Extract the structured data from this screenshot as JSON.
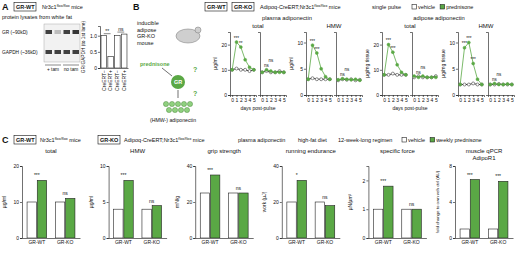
{
  "figure": {
    "panel_labels": [
      "A",
      "B",
      "C"
    ],
    "A": {
      "genotype": "GR-WT",
      "mice": [
        "Nr3c1",
        "flox/flox",
        " mice"
      ],
      "title": "protein lysates from white fat",
      "blot_labels": [
        "GR (~90kD)",
        "GAPDH (~36kD)"
      ],
      "treatments": [
        "+ tam",
        "no tam"
      ]
    },
    "B": {
      "genotypes": [
        "GR-WT",
        "GR-KO"
      ],
      "mice": [
        "Adipoq-CreERT;Nr3c1",
        "flox/flox",
        " mice"
      ],
      "regimen": "single pulse",
      "group_titles": [
        "plasma adiponectin",
        "adipose adiponectin"
      ],
      "diagram": {
        "mouse": [
          "inducible",
          "adipose",
          "GR-KO",
          "mouse"
        ],
        "drug": "prednisone",
        "receptor": "GR",
        "question_marks": [
          "?",
          "?"
        ],
        "product": "(HMW-) adiponectin"
      }
    },
    "C": {
      "genotypes": [
        "GR-WT",
        "GR-KO"
      ],
      "mice": [
        [
          "Nr3c1",
          "flox/flox",
          " mice"
        ],
        [
          "Adipoq-CreERT;Nr3c1",
          "flox/flox",
          " mice"
        ]
      ],
      "regimen": "12-week-long regimen",
      "group_titles": [
        "plasma adiponectin",
        "high-fat diet"
      ]
    }
  },
  "chart_data": [
    {
      "type": "bar",
      "ylabel": "GR/GAPDH (to 1st lane)",
      "categories": [
        "CreERT−",
        "CreERT+",
        "CreERT−",
        "CreERT+"
      ],
      "values": [
        1.0,
        0.35,
        1.0,
        1.05
      ],
      "color": "#ffffff",
      "ylim": [
        0,
        1.3
      ],
      "yticks": [
        0,
        0.5,
        {
          "value": 1,
          "label": "1.0"
        }
      ],
      "sig_labels": [
        "**",
        "ns"
      ]
    },
    {
      "type": "line",
      "title": "total",
      "ylabel": "µg/ml",
      "xlabel": "days post-pulse",
      "x": [
        0,
        1,
        2,
        3,
        4,
        5
      ],
      "xlim": [
        -0.5,
        5.5
      ],
      "xticks": [
        0,
        1,
        2,
        3,
        4,
        5
      ],
      "ylim": [
        0,
        25
      ],
      "yticks": [
        0,
        10,
        20
      ],
      "series": [
        {
          "name": "vehicle",
          "group": "GR-WT",
          "color": "#ffffff",
          "values": [
            10,
            10.5,
            10,
            10,
            9.5,
            10
          ]
        },
        {
          "name": "prednisone",
          "group": "GR-WT",
          "color": "#5aa845",
          "values": [
            10,
            21,
            19,
            14,
            11,
            10
          ],
          "sig_labels": [
            null,
            "***",
            "**",
            null,
            null,
            null
          ]
        },
        {
          "name": "vehicle",
          "group": "GR-KO",
          "color": "#ffffff",
          "values": [
            9,
            9.5,
            9,
            9,
            9.5,
            9
          ]
        },
        {
          "name": "prednisone",
          "group": "GR-KO",
          "color": "#5aa845",
          "values": [
            9,
            10,
            9.5,
            9,
            9,
            9
          ],
          "sig_labels": [
            null,
            "ns",
            "ns",
            null,
            null,
            null
          ]
        }
      ]
    },
    {
      "type": "line",
      "title": "HMW",
      "ylabel": "µg/ml",
      "x": [
        0,
        1,
        2,
        3,
        4,
        5
      ],
      "xlim": [
        -0.5,
        5.5
      ],
      "xticks": [
        0,
        1,
        2,
        3,
        4,
        5
      ],
      "ylim": [
        0,
        12
      ],
      "yticks": [
        0,
        5,
        10
      ],
      "series": [
        {
          "name": "vehicle",
          "group": "GR-WT",
          "color": "#ffffff",
          "values": [
            3,
            3.2,
            3,
            3,
            3,
            3
          ]
        },
        {
          "name": "prednisone",
          "group": "GR-WT",
          "color": "#5aa845",
          "values": [
            3,
            9.5,
            8,
            5,
            3.5,
            3
          ],
          "sig_labels": [
            null,
            "***",
            "***",
            null,
            null,
            null
          ]
        },
        {
          "name": "vehicle",
          "group": "GR-KO",
          "color": "#ffffff",
          "values": [
            2.8,
            3,
            2.9,
            3,
            2.8,
            2.9
          ]
        },
        {
          "name": "prednisone",
          "group": "GR-KO",
          "color": "#5aa845",
          "values": [
            2.9,
            3.1,
            3,
            2.9,
            3,
            2.8
          ],
          "sig_labels": [
            null,
            "ns",
            "ns",
            null,
            null,
            null
          ]
        }
      ]
    },
    {
      "type": "line",
      "title": "total",
      "ylabel": "µg/mg tissue",
      "xlabel": "days post-pulse",
      "x": [
        0,
        1,
        2,
        3,
        4,
        5
      ],
      "xlim": [
        -0.5,
        5.5
      ],
      "xticks": [
        0,
        1,
        2,
        3,
        4,
        5
      ],
      "ylim": [
        0,
        25
      ],
      "yticks": [
        0,
        10,
        20
      ],
      "series": [
        {
          "name": "vehicle",
          "group": "GR-WT",
          "color": "#ffffff",
          "values": [
            8,
            8,
            8.5,
            8,
            8,
            8
          ]
        },
        {
          "name": "prednisone",
          "group": "GR-WT",
          "color": "#5aa845",
          "values": [
            8,
            20,
            17,
            12,
            9,
            8
          ],
          "sig_labels": [
            null,
            "***",
            "***",
            null,
            null,
            null
          ]
        },
        {
          "name": "vehicle",
          "group": "GR-KO",
          "color": "#ffffff",
          "values": [
            7,
            7.5,
            7,
            7,
            7,
            7.5
          ]
        },
        {
          "name": "prednisone",
          "group": "GR-KO",
          "color": "#5aa845",
          "values": [
            7.5,
            7,
            7.5,
            7,
            7,
            7
          ],
          "sig_labels": [
            null,
            "ns",
            "ns",
            null,
            null,
            null
          ]
        }
      ]
    },
    {
      "type": "line",
      "title": "HMW",
      "ylabel": "µg/mg tissue",
      "x": [
        0,
        1,
        2,
        3,
        4,
        5
      ],
      "xlim": [
        -0.5,
        5.5
      ],
      "xticks": [
        0,
        1,
        2,
        3,
        4,
        5
      ],
      "ylim": [
        0,
        12
      ],
      "yticks": [
        0,
        5,
        10
      ],
      "series": [
        {
          "name": "vehicle",
          "group": "GR-WT",
          "color": "#ffffff",
          "values": [
            2,
            2,
            2,
            2.2,
            2,
            2
          ]
        },
        {
          "name": "prednisone",
          "group": "GR-WT",
          "color": "#5aa845",
          "values": [
            2,
            9,
            10,
            6,
            3,
            2
          ],
          "sig_labels": [
            null,
            "***",
            "***",
            "***",
            null,
            null
          ]
        },
        {
          "name": "vehicle",
          "group": "GR-KO",
          "color": "#ffffff",
          "values": [
            2,
            2,
            2.1,
            2,
            2,
            2
          ]
        },
        {
          "name": "prednisone",
          "group": "GR-KO",
          "color": "#5aa845",
          "values": [
            2,
            2.2,
            2,
            2,
            2.1,
            2
          ],
          "sig_labels": [
            null,
            "ns",
            "ns",
            null,
            null,
            null
          ]
        }
      ]
    },
    {
      "type": "bar",
      "title": "total",
      "ylabel": "µg/ml",
      "categories": [
        "GR-WT",
        "GR-KO"
      ],
      "ylim": [
        0,
        20
      ],
      "yticks": [
        0,
        10,
        20
      ],
      "series": [
        {
          "name": "vehicle",
          "color": "#ffffff",
          "values": [
            10,
            10
          ]
        },
        {
          "name": "weekly prednisone",
          "color": "#5aa845",
          "values": [
            16,
            11
          ]
        }
      ],
      "sig_labels": [
        "***",
        "ns"
      ]
    },
    {
      "type": "bar",
      "title": "HMW",
      "ylabel": "µg/ml",
      "categories": [
        "GR-WT",
        "GR-KO"
      ],
      "ylim": [
        0,
        10
      ],
      "yticks": [
        0,
        5,
        10
      ],
      "series": [
        {
          "name": "vehicle",
          "color": "#ffffff",
          "values": [
            4,
            4
          ]
        },
        {
          "name": "weekly prednisone",
          "color": "#5aa845",
          "values": [
            8,
            4.5
          ]
        }
      ],
      "sig_labels": [
        "***",
        "ns"
      ]
    },
    {
      "type": "bar",
      "title": "grip strength",
      "ylabel": "mN/g",
      "categories": [
        "GR-WT",
        "GR-KO"
      ],
      "ylim": [
        0,
        40
      ],
      "yticks": [
        0,
        20,
        40
      ],
      "series": [
        {
          "name": "vehicle",
          "color": "#ffffff",
          "values": [
            25,
            25
          ]
        },
        {
          "name": "weekly prednisone",
          "color": "#5aa845",
          "values": [
            35,
            25
          ]
        }
      ],
      "sig_labels": [
        "***",
        "ns"
      ]
    },
    {
      "type": "bar",
      "title": "running endurance",
      "ylabel": "work (µJ)",
      "categories": [
        "GR-WT",
        "GR-KO"
      ],
      "ylim": [
        0,
        40
      ],
      "yticks": [
        0,
        20,
        40
      ],
      "series": [
        {
          "name": "vehicle",
          "color": "#ffffff",
          "values": [
            20,
            20
          ]
        },
        {
          "name": "weekly prednisone",
          "color": "#5aa845",
          "values": [
            32,
            18
          ]
        }
      ],
      "sig_labels": [
        "*",
        "ns"
      ]
    },
    {
      "type": "bar",
      "title": "specific force",
      "ylabel": "µN/µm²",
      "categories": [
        "GR-WT",
        "GR-KO"
      ],
      "ylim": [
        0,
        2.5
      ],
      "yticks": [
        0,
        1,
        2
      ],
      "series": [
        {
          "name": "vehicle",
          "color": "#ffffff",
          "values": [
            1.0,
            1.0
          ]
        },
        {
          "name": "weekly prednisone",
          "color": "#5aa845",
          "values": [
            1.8,
            1.0
          ]
        }
      ],
      "sig_labels": [
        "***",
        "ns"
      ]
    },
    {
      "type": "bar",
      "title": "muscle qPCR",
      "subtitle": "AdipoR1",
      "ylabel": "fold change to own veh ctrl (AU)",
      "categories": [
        "GR-WT",
        "GR-KO"
      ],
      "ylim": [
        0,
        8
      ],
      "yticks": [
        0,
        4,
        8
      ],
      "series": [
        {
          "name": "vehicle",
          "color": "#ffffff",
          "values": [
            1,
            1
          ]
        },
        {
          "name": "weekly prednisone",
          "color": "#5aa845",
          "values": [
            6.5,
            6.3
          ]
        }
      ],
      "sig_labels": [
        "***",
        "***"
      ]
    }
  ]
}
